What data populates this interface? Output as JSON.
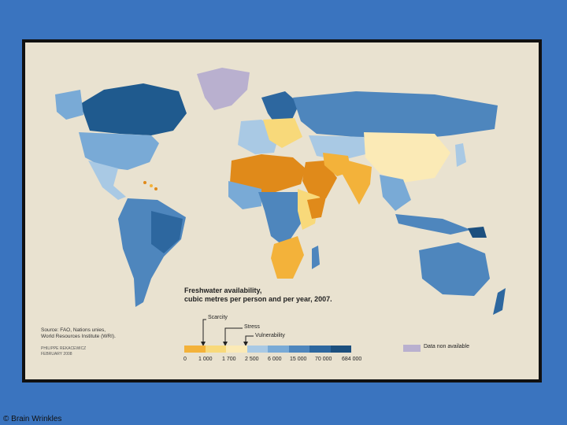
{
  "legend": {
    "title_line1": "Freshwater availability,",
    "title_line2": "cubic metres per person and per year, 2007.",
    "scarcity_label": "Scarcity",
    "stress_label": "Stress",
    "vulnerability_label": "Vulnerability",
    "scale_colors": [
      "#e08a1a",
      "#f3b23a",
      "#f8d97a",
      "#fbeab6",
      "#a9c9e4",
      "#79aad6",
      "#4e86bd",
      "#2d679f",
      "#1c4f7e"
    ],
    "ticks": [
      "0",
      "1 000",
      "1 700",
      "2 500",
      "6 000",
      "15 000",
      "70 000",
      "684 000"
    ],
    "no_data_label": "Data non available",
    "no_data_color": "#b9b0cf"
  },
  "source": {
    "line1": "Source: FAO, Nations unies,",
    "line2": "World Resources Institute (WRI)."
  },
  "credit": {
    "author": "PHILIPPE REKACEWICZ",
    "date": "FEBRUARY 2008"
  },
  "footer": {
    "copyright": "© Brain Wrinkles"
  }
}
